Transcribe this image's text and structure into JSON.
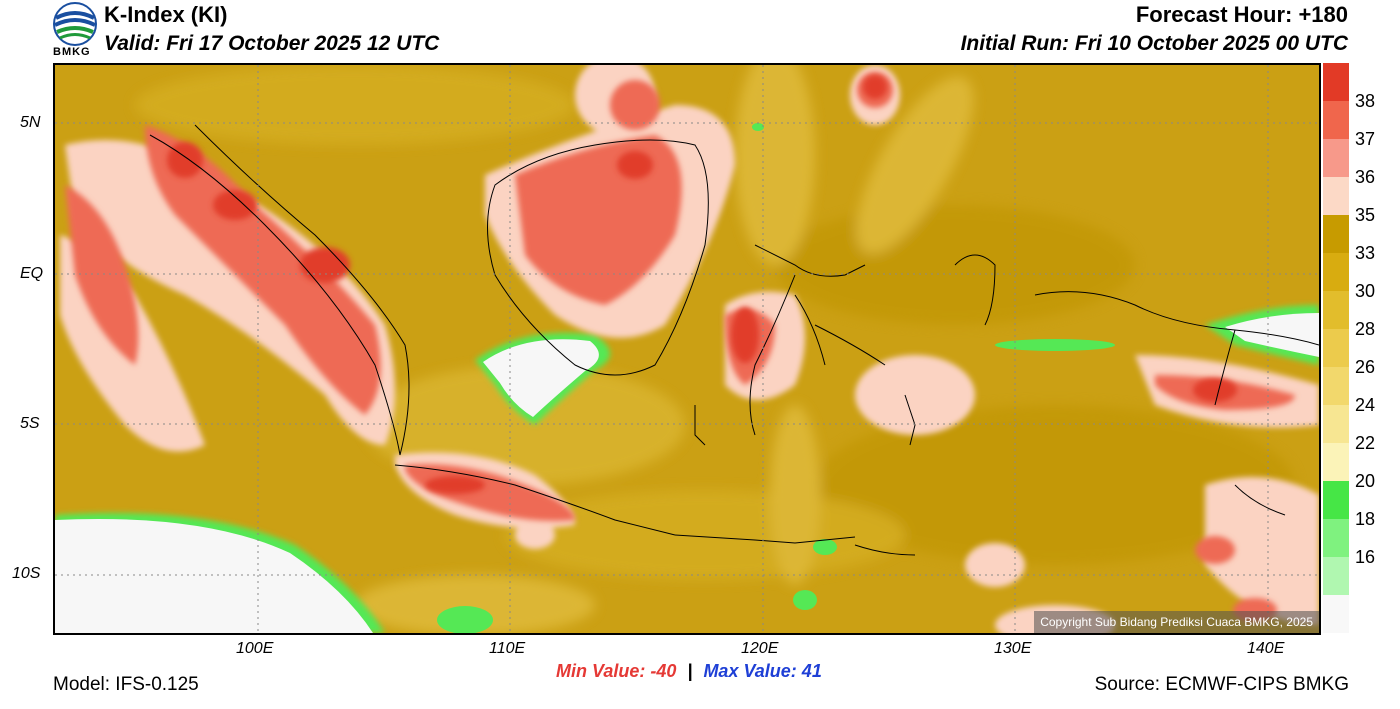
{
  "header": {
    "title": "K-Index (KI)",
    "valid": "Valid: Fri 17 October 2025 12 UTC",
    "forecast_hour": "Forecast Hour: +180",
    "initial_run": "Initial Run: Fri 10 October 2025 00 UTC",
    "logo_text": "BMKG"
  },
  "map": {
    "lat_labels": [
      "5N",
      "EQ",
      "5S",
      "10S"
    ],
    "lon_labels": [
      "100E",
      "110E",
      "120E",
      "130E",
      "140E"
    ],
    "copyright": "Copyright Sub Bidang Prediksi Cuaca BMKG, 2025"
  },
  "colorbar": {
    "labels": [
      "38",
      "37",
      "36",
      "35",
      "33",
      "30",
      "28",
      "26",
      "24",
      "22",
      "20",
      "18",
      "16"
    ],
    "colors": [
      "#e23a26",
      "#f0664c",
      "#f7998a",
      "#fcd9c6",
      "#c79b00",
      "#d8ac10",
      "#e2bd2c",
      "#eccb4c",
      "#f2d86c",
      "#f7e692",
      "#fbf3b8",
      "#46e646",
      "#7ff27f",
      "#b0f7b0",
      "#f8f8f8"
    ]
  },
  "stats": {
    "min_label": "Min Value: -40",
    "separator": "|",
    "max_label": "Max Value:  41"
  },
  "footer": {
    "model": "Model: IFS-0.125",
    "source": "Source: ECMWF-CIPS BMKG"
  },
  "palette": {
    "background": "#cba014",
    "high": "#ee6a55",
    "very_high": "#e13c2b",
    "pink": "#fbd3c2",
    "low_yellow": "#e8c64b",
    "green": "#55e855",
    "white": "#f7f7f7"
  }
}
